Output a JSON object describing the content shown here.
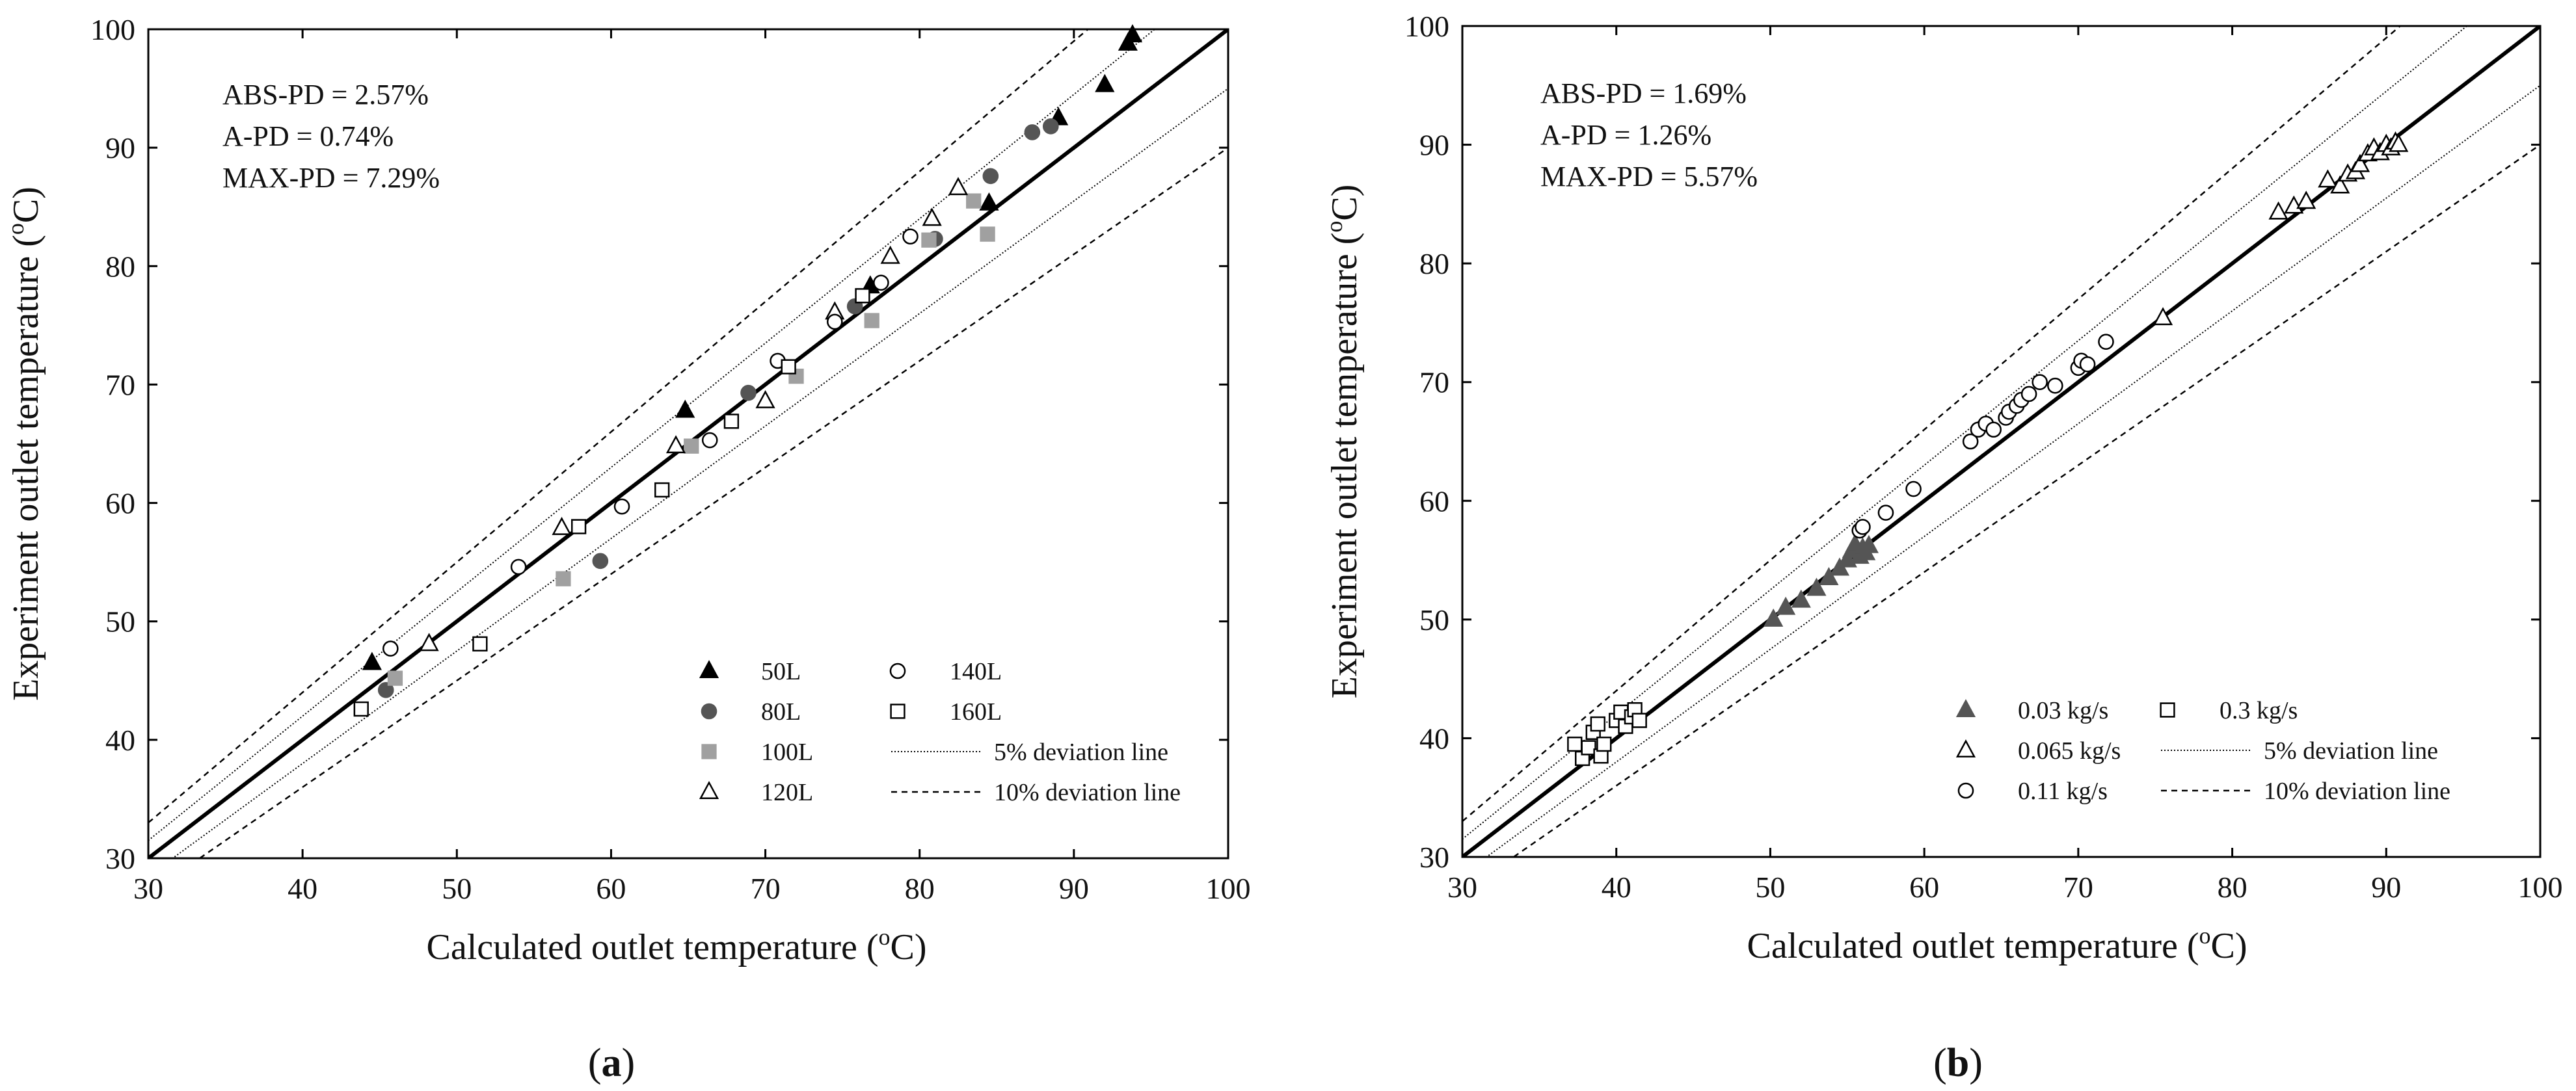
{
  "chart_data": [
    {
      "id": "a",
      "type": "scatter",
      "panel_label": "a",
      "xlabel": "Calculated outlet temperature (",
      "ylabel": "Experiment outlet temperature (",
      "unit_sup": "o",
      "unit_tail": "C)",
      "xlim": [
        30,
        100
      ],
      "ylim": [
        30,
        100
      ],
      "xticks": [
        30,
        40,
        50,
        60,
        70,
        80,
        90,
        100
      ],
      "yticks": [
        30,
        40,
        50,
        60,
        70,
        80,
        90,
        100
      ],
      "stats": [
        "ABS-PD = 2.57%",
        "A-PD = 0.74%",
        "MAX-PD = 7.29%"
      ],
      "reference_lines": [
        {
          "name": "5% deviation line",
          "style": "dotted",
          "factors": [
            1.05,
            0.95
          ]
        },
        {
          "name": "10% deviation line",
          "style": "dashed",
          "factors": [
            1.1,
            0.9
          ]
        }
      ],
      "series": [
        {
          "name": "50L",
          "marker": "triangle-filled",
          "color": "#000000",
          "points": [
            [
              44.5,
              46.5
            ],
            [
              64.8,
              67.8
            ],
            [
              76.8,
              78.3
            ],
            [
              84.5,
              85.3
            ],
            [
              89.0,
              92.5
            ],
            [
              92.0,
              95.3
            ],
            [
              93.5,
              98.8
            ],
            [
              93.8,
              99.5
            ]
          ]
        },
        {
          "name": "80L",
          "marker": "circle-filled",
          "color": "#555555",
          "points": [
            [
              45.4,
              44.2
            ],
            [
              59.3,
              55.1
            ],
            [
              68.9,
              69.3
            ],
            [
              75.8,
              76.6
            ],
            [
              81.0,
              82.3
            ],
            [
              84.6,
              87.6
            ],
            [
              87.3,
              91.3
            ],
            [
              88.5,
              91.8
            ]
          ]
        },
        {
          "name": "100L",
          "marker": "square-filled",
          "color": "#a0a0a0",
          "points": [
            [
              46.0,
              45.2
            ],
            [
              56.9,
              53.6
            ],
            [
              65.2,
              64.8
            ],
            [
              72.0,
              70.7
            ],
            [
              76.9,
              75.4
            ],
            [
              80.6,
              82.2
            ],
            [
              83.5,
              85.5
            ],
            [
              84.4,
              82.7
            ]
          ]
        },
        {
          "name": "120L",
          "marker": "triangle-open",
          "color": "#000000",
          "points": [
            [
              48.2,
              48.1
            ],
            [
              56.8,
              57.9
            ],
            [
              64.2,
              64.8
            ],
            [
              70.0,
              68.6
            ],
            [
              74.5,
              76.1
            ],
            [
              78.1,
              80.8
            ],
            [
              80.8,
              84.0
            ],
            [
              82.5,
              86.6
            ]
          ]
        },
        {
          "name": "140L",
          "marker": "circle-open",
          "color": "#000000",
          "points": [
            [
              45.7,
              47.7
            ],
            [
              54.0,
              54.6
            ],
            [
              60.7,
              59.7
            ],
            [
              66.4,
              65.3
            ],
            [
              70.8,
              72.0
            ],
            [
              74.5,
              75.3
            ],
            [
              77.5,
              78.6
            ],
            [
              79.4,
              82.5
            ]
          ]
        },
        {
          "name": "160L",
          "marker": "square-open",
          "color": "#000000",
          "points": [
            [
              43.8,
              42.6
            ],
            [
              51.5,
              48.1
            ],
            [
              57.9,
              58.0
            ],
            [
              63.3,
              61.1
            ],
            [
              67.8,
              66.9
            ],
            [
              71.5,
              71.5
            ],
            [
              76.3,
              77.5
            ]
          ]
        }
      ],
      "legend": {
        "placement": "bottom-right",
        "items": [
          {
            "label": "50L",
            "marker": "triangle-filled"
          },
          {
            "label": "140L",
            "marker": "circle-open"
          },
          {
            "label": "80L",
            "marker": "circle-filled"
          },
          {
            "label": "160L",
            "marker": "square-open"
          },
          {
            "label": "100L",
            "marker": "square-filled"
          },
          {
            "label": "5% deviation line",
            "line": "dotted"
          },
          {
            "label": "120L",
            "marker": "triangle-open"
          },
          {
            "label": "10% deviation line",
            "line": "dashed"
          }
        ]
      }
    },
    {
      "id": "b",
      "type": "scatter",
      "panel_label": "b",
      "xlabel": "Calculated outlet temperature (",
      "ylabel": "Experiment outlet temperature (",
      "unit_sup": "o",
      "unit_tail": "C)",
      "xlim": [
        30,
        100
      ],
      "ylim": [
        30,
        100
      ],
      "xticks": [
        30,
        40,
        50,
        60,
        70,
        80,
        90,
        100
      ],
      "yticks": [
        30,
        40,
        50,
        60,
        70,
        80,
        90,
        100
      ],
      "stats": [
        "ABS-PD = 1.69%",
        "A-PD = 1.26%",
        "MAX-PD = 5.57%"
      ],
      "reference_lines": [
        {
          "name": "5% deviation line",
          "style": "dotted",
          "factors": [
            1.05,
            0.95
          ]
        },
        {
          "name": "10% deviation line",
          "style": "dashed",
          "factors": [
            1.1,
            0.9
          ]
        }
      ],
      "series": [
        {
          "name": "0.03 kg/s",
          "marker": "triangle-filled",
          "color": "#555555",
          "points": [
            [
              50.2,
              50.0
            ],
            [
              51.0,
              51.0
            ],
            [
              52.0,
              51.6
            ],
            [
              53.0,
              52.6
            ],
            [
              53.8,
              53.5
            ],
            [
              54.5,
              54.3
            ],
            [
              55.0,
              55.0
            ],
            [
              55.3,
              55.8
            ],
            [
              55.5,
              56.3
            ],
            [
              55.8,
              55.3
            ],
            [
              56.0,
              56.0
            ],
            [
              56.2,
              55.6
            ],
            [
              56.4,
              56.2
            ]
          ]
        },
        {
          "name": "0.065 kg/s",
          "marker": "triangle-open",
          "color": "#000000",
          "points": [
            [
              75.5,
              75.4
            ],
            [
              83.0,
              84.3
            ],
            [
              84.0,
              84.8
            ],
            [
              84.8,
              85.2
            ],
            [
              86.2,
              87.0
            ],
            [
              87.0,
              86.5
            ],
            [
              87.5,
              87.5
            ],
            [
              88.0,
              87.7
            ],
            [
              88.3,
              88.3
            ],
            [
              88.8,
              89.2
            ],
            [
              89.2,
              89.7
            ],
            [
              89.6,
              89.3
            ],
            [
              90.0,
              90.0
            ],
            [
              90.3,
              89.7
            ],
            [
              90.6,
              90.2
            ],
            [
              90.8,
              90.0
            ]
          ]
        },
        {
          "name": "0.11 kg/s",
          "marker": "circle-open",
          "color": "#000000",
          "points": [
            [
              55.8,
              57.5
            ],
            [
              56.0,
              57.8
            ],
            [
              57.5,
              59.0
            ],
            [
              59.3,
              61.0
            ],
            [
              63.0,
              65.0
            ],
            [
              63.5,
              66.0
            ],
            [
              64.0,
              66.5
            ],
            [
              64.5,
              66.0
            ],
            [
              65.3,
              67.0
            ],
            [
              65.5,
              67.5
            ],
            [
              66.0,
              68.0
            ],
            [
              66.3,
              68.5
            ],
            [
              66.8,
              69.0
            ],
            [
              67.5,
              70.0
            ],
            [
              68.5,
              69.7
            ],
            [
              70.0,
              71.2
            ],
            [
              70.2,
              71.8
            ],
            [
              70.6,
              71.5
            ],
            [
              71.8,
              73.4
            ]
          ]
        },
        {
          "name": "0.3 kg/s",
          "marker": "square-open",
          "color": "#000000",
          "points": [
            [
              37.3,
              39.5
            ],
            [
              37.8,
              38.3
            ],
            [
              38.2,
              39.2
            ],
            [
              38.5,
              40.5
            ],
            [
              38.8,
              41.2
            ],
            [
              39.0,
              38.5
            ],
            [
              39.2,
              39.5
            ],
            [
              40.0,
              41.5
            ],
            [
              40.3,
              42.2
            ],
            [
              40.6,
              41.0
            ],
            [
              41.0,
              41.8
            ],
            [
              41.2,
              42.4
            ],
            [
              41.5,
              41.5
            ]
          ]
        }
      ],
      "legend": {
        "placement": "bottom-right",
        "items": [
          {
            "label": "0.03 kg/s",
            "marker": "triangle-filled"
          },
          {
            "label": "0.3 kg/s",
            "marker": "square-open"
          },
          {
            "label": "0.065 kg/s",
            "marker": "triangle-open"
          },
          {
            "label": "5% deviation line",
            "line": "dotted"
          },
          {
            "label": "0.11 kg/s",
            "marker": "circle-open"
          },
          {
            "label": "10% deviation line",
            "line": "dashed"
          }
        ]
      }
    }
  ]
}
